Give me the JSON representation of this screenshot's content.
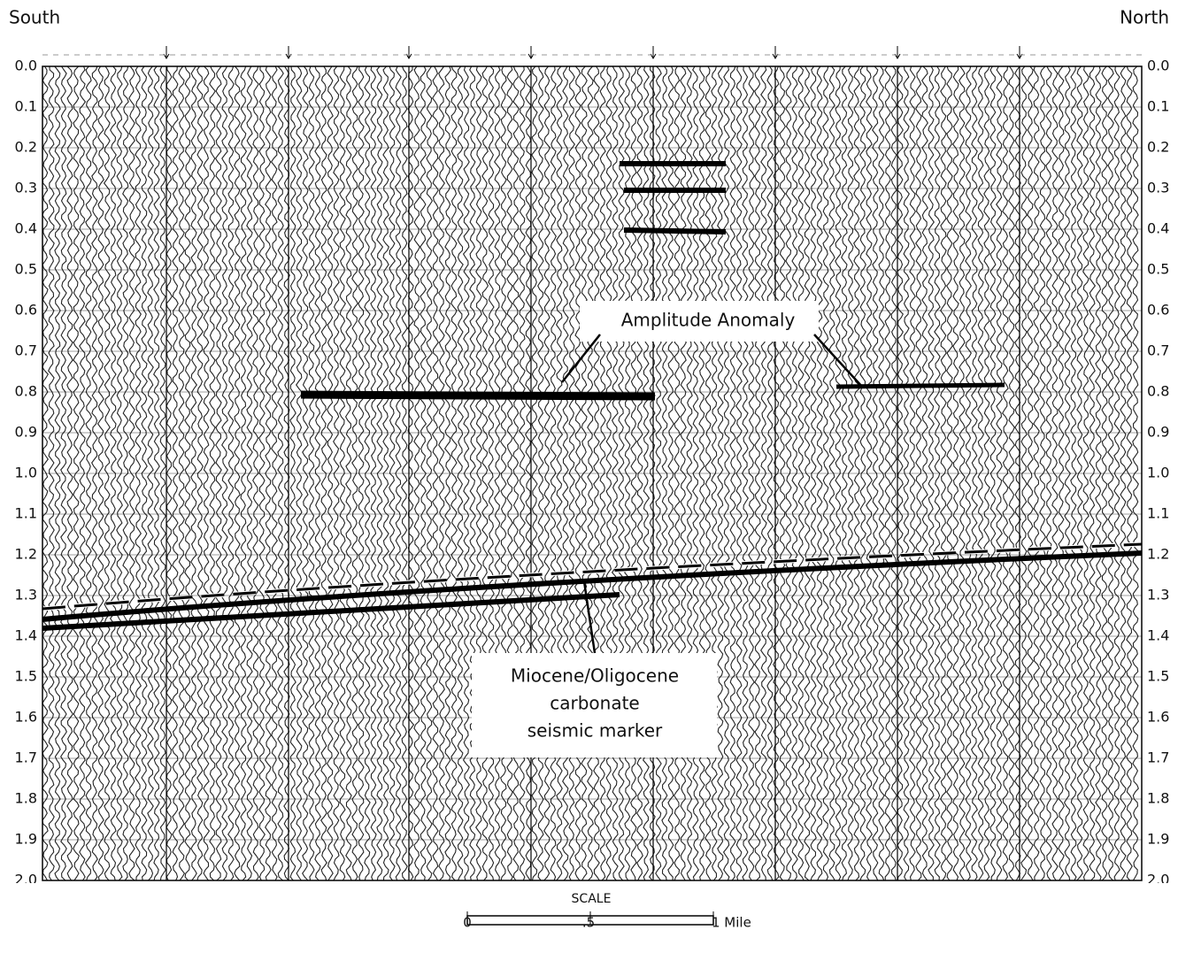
{
  "header": {
    "left": "South",
    "right": "North"
  },
  "time_axis": {
    "range": [
      0,
      2
    ],
    "ticks": [
      {
        "value": 0,
        "label": "0.0"
      },
      {
        "value": 0.1,
        "label": "0.1"
      },
      {
        "value": 0.2,
        "label": "0.2"
      },
      {
        "value": 0.3,
        "label": "0.3"
      },
      {
        "value": 0.4,
        "label": "0.4"
      },
      {
        "value": 0.5,
        "label": "0.5"
      },
      {
        "value": 0.6,
        "label": "0.6"
      },
      {
        "value": 0.7,
        "label": "0.7"
      },
      {
        "value": 0.8,
        "label": "0.8"
      },
      {
        "value": 0.9,
        "label": "0.9"
      },
      {
        "value": 1,
        "label": "1.0"
      },
      {
        "value": 1.1,
        "label": "1.1"
      },
      {
        "value": 1.2,
        "label": "1.2"
      },
      {
        "value": 1.3,
        "label": "1.3"
      },
      {
        "value": 1.4,
        "label": "1.4"
      },
      {
        "value": 1.5,
        "label": "1.5"
      },
      {
        "value": 1.6,
        "label": "1.6"
      },
      {
        "value": 1.7,
        "label": "1.7"
      },
      {
        "value": 1.8,
        "label": "1.8"
      },
      {
        "value": 1.9,
        "label": "1.9"
      },
      {
        "value": 2,
        "label": "2.0"
      }
    ]
  },
  "annotations": {
    "anomaly": "Amplitude Anomaly",
    "marker": [
      "Miocene/Oligocene",
      "carbonate",
      "seismic marker"
    ]
  },
  "scale": {
    "title": "SCALE",
    "range": [
      0,
      1
    ],
    "ticks": [
      0,
      {
        "value": 0.5,
        "label": ".5"
      },
      {
        "value": 1,
        "label": "1 Mile"
      }
    ]
  }
}
